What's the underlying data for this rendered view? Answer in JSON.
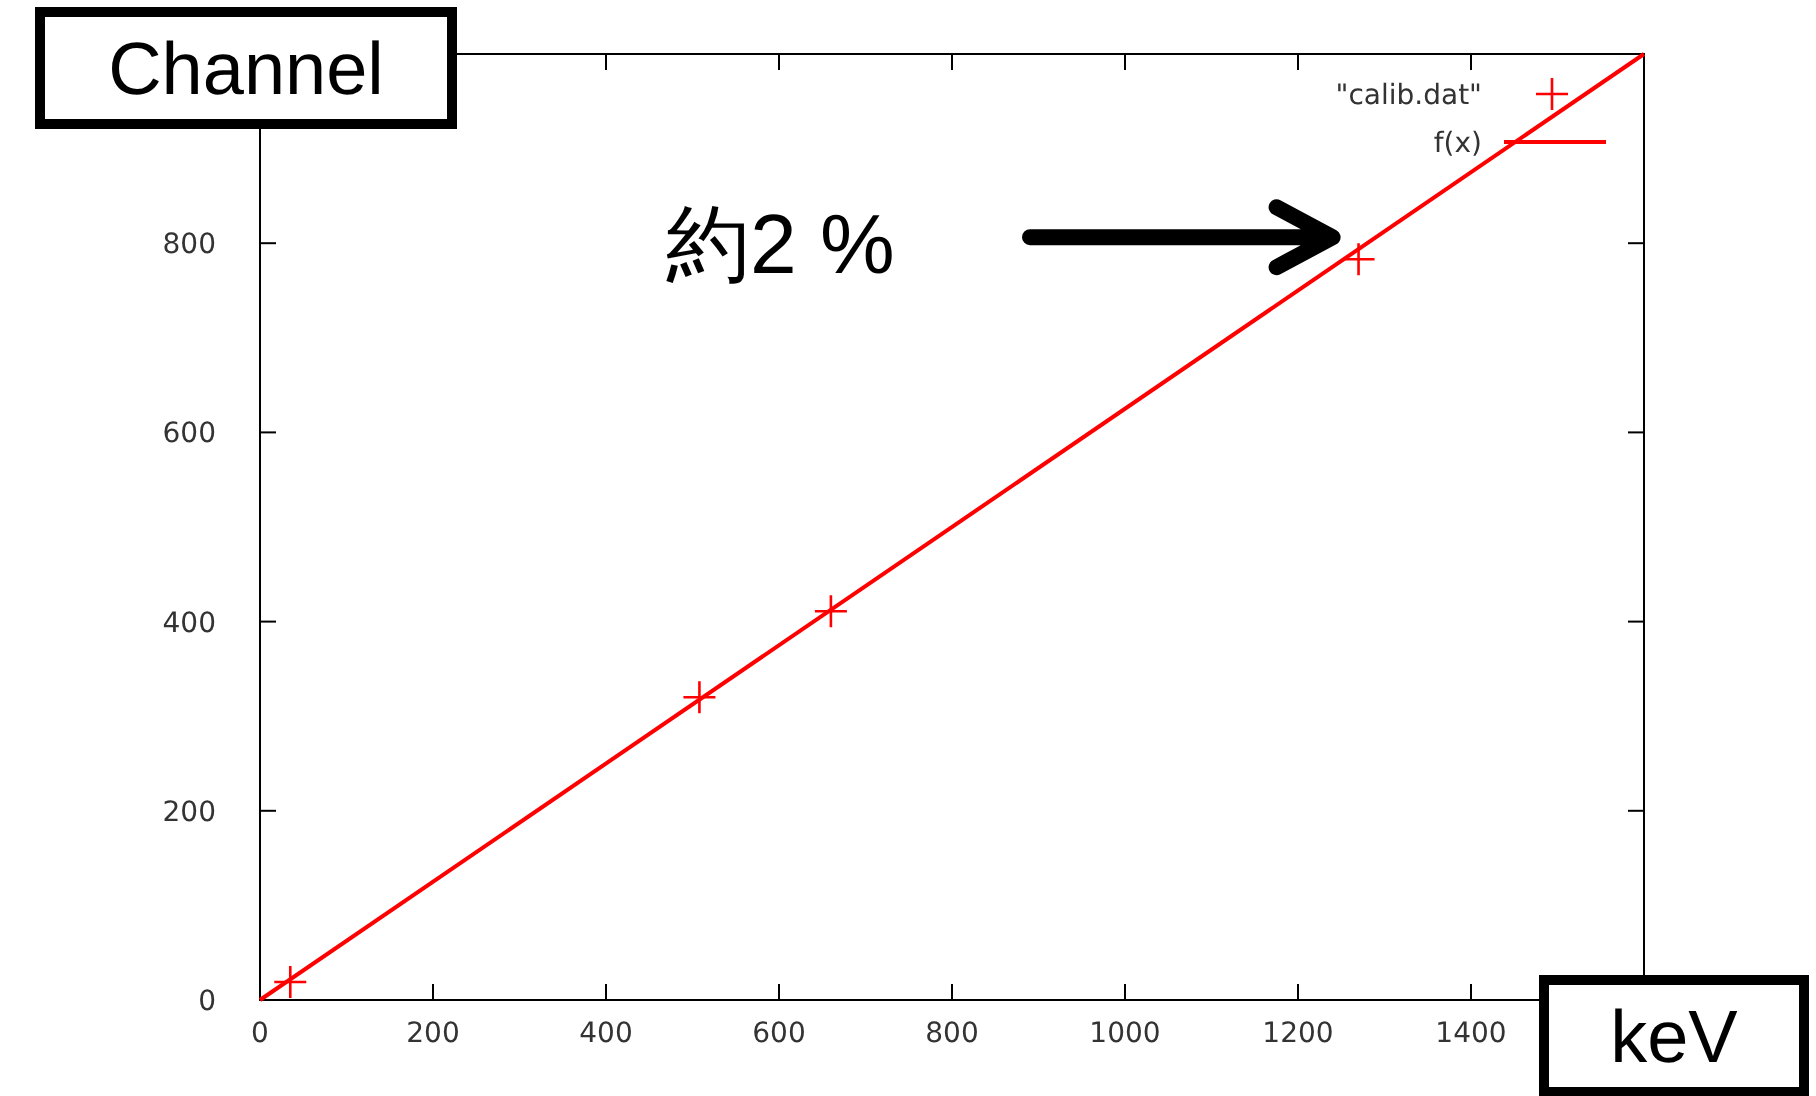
{
  "chart_data": {
    "type": "scatter",
    "xlabel": "keV",
    "ylabel": "Channel",
    "series": [
      {
        "name": "\"calib.dat\"",
        "color": "#ff0000",
        "marker": "cross",
        "x": [
          35,
          508,
          660,
          1270
        ],
        "values": [
          19,
          320,
          411,
          783
        ]
      },
      {
        "name": "f(x)",
        "type": "line",
        "color": "#ff0000",
        "x": [
          0,
          1600
        ],
        "values": [
          0,
          1000
        ]
      }
    ],
    "xlim": [
      0,
      1600
    ],
    "ylim": [
      0,
      1000
    ],
    "xticks": [
      0,
      200,
      400,
      600,
      800,
      1000,
      1200,
      1400
    ],
    "yticks": [
      0,
      200,
      400,
      600,
      800
    ],
    "grid": false,
    "legend": "top right",
    "annotations": [
      "約2 %"
    ]
  }
}
